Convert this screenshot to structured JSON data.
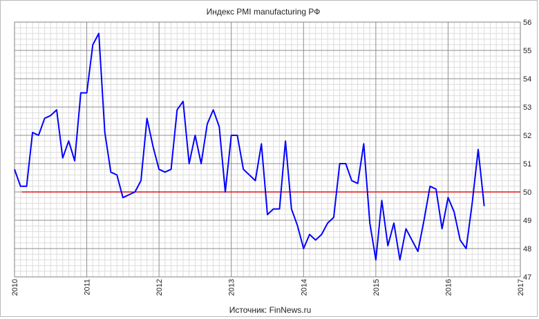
{
  "chart_data": {
    "type": "line",
    "title": "Индекс PMI manufacturing РФ",
    "source": "Источник: FinNews.ru",
    "xlim": [
      2010,
      2017
    ],
    "ylim": [
      47,
      56
    ],
    "x_ticks": [
      2010,
      2011,
      2012,
      2013,
      2014,
      2015,
      2016,
      2017
    ],
    "y_ticks": [
      47,
      48,
      49,
      50,
      51,
      52,
      53,
      54,
      55,
      56
    ],
    "y_axis_side": "right",
    "x_tick_labels_rotated": true,
    "grid": true,
    "threshold": {
      "value": 50,
      "x_start": 2010.1,
      "x_end": 2017.0,
      "color": "#e01010"
    },
    "series": [
      {
        "color": "#0000ff",
        "x": [
          2010.0,
          2010.083,
          2010.167,
          2010.25,
          2010.333,
          2010.417,
          2010.5,
          2010.583,
          2010.667,
          2010.75,
          2010.833,
          2010.917,
          2011.0,
          2011.083,
          2011.167,
          2011.25,
          2011.333,
          2011.417,
          2011.5,
          2011.583,
          2011.667,
          2011.75,
          2011.833,
          2011.917,
          2012.0,
          2012.083,
          2012.167,
          2012.25,
          2012.333,
          2012.417,
          2012.5,
          2012.583,
          2012.667,
          2012.75,
          2012.833,
          2012.917,
          2013.0,
          2013.083,
          2013.167,
          2013.25,
          2013.333,
          2013.417,
          2013.5,
          2013.583,
          2013.667,
          2013.75,
          2013.833,
          2013.917,
          2014.0,
          2014.083,
          2014.167,
          2014.25,
          2014.333,
          2014.417,
          2014.5,
          2014.583,
          2014.667,
          2014.75,
          2014.833,
          2014.917,
          2015.0,
          2015.083,
          2015.167,
          2015.25,
          2015.333,
          2015.417,
          2015.5,
          2015.583,
          2015.667,
          2015.75,
          2015.833,
          2015.917,
          2016.0,
          2016.083,
          2016.167,
          2016.25,
          2016.333,
          2016.417,
          2016.5
        ],
        "y": [
          50.8,
          50.2,
          50.2,
          52.1,
          52.0,
          52.6,
          52.7,
          52.9,
          51.2,
          51.8,
          51.1,
          53.5,
          53.5,
          55.2,
          55.6,
          52.1,
          50.7,
          50.6,
          49.8,
          49.9,
          50.0,
          50.4,
          52.6,
          51.6,
          50.8,
          50.7,
          50.8,
          52.9,
          53.2,
          51.0,
          52.0,
          51.0,
          52.4,
          52.9,
          52.3,
          50.0,
          52.0,
          52.0,
          50.8,
          50.6,
          50.4,
          51.7,
          49.2,
          49.4,
          49.4,
          51.8,
          49.4,
          48.8,
          48.0,
          48.5,
          48.3,
          48.5,
          48.9,
          49.1,
          51.0,
          51.0,
          50.4,
          50.3,
          51.7,
          48.9,
          47.6,
          49.7,
          48.1,
          48.9,
          47.6,
          48.7,
          48.3,
          47.9,
          49.0,
          50.2,
          50.1,
          48.7,
          49.8,
          49.3,
          48.3,
          48.0,
          49.6,
          51.5,
          49.5
        ]
      }
    ]
  }
}
